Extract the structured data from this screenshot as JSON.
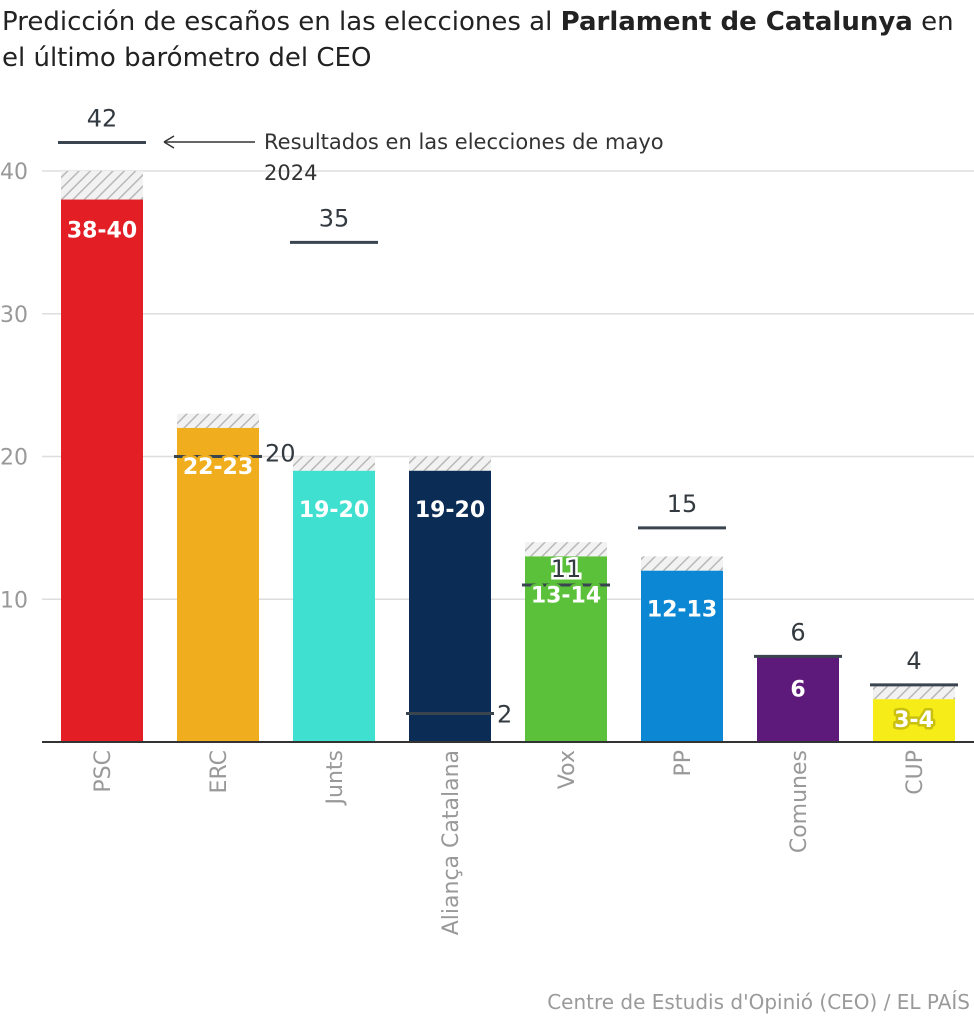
{
  "title": {
    "prefix": "Predicción de escaños en las elecciones al ",
    "bold": "Parlament de Catalunya",
    "suffix": " en el último barómetro del CEO"
  },
  "source": "Centre de Estudis d'Opinió (CEO) / EL PAÍS",
  "chart_data": {
    "type": "bar",
    "ylim": [
      0,
      40
    ],
    "yticks": [
      10,
      20,
      30,
      40
    ],
    "grid": true,
    "annotation": {
      "line1": "Resultados en las elecciones de mayo",
      "line2": "2024"
    },
    "categories": [
      "PSC",
      "ERC",
      "Junts",
      "Aliança Catalana",
      "Vox",
      "PP",
      "Comunes",
      "CUP"
    ],
    "series": [
      {
        "values_min": [
          38,
          22,
          19,
          19,
          13,
          12,
          6,
          3
        ]
      },
      {
        "values_max": [
          40,
          23,
          20,
          20,
          14,
          13,
          6,
          4
        ]
      }
    ],
    "range_labels": [
      "38-40",
      "22-23",
      "19-20",
      "19-20",
      "13-14",
      "12-13",
      "6",
      "3-4"
    ],
    "previous_results": [
      42,
      20,
      35,
      2,
      11,
      15,
      6,
      4
    ],
    "colors": [
      "#e31e25",
      "#f0ae1e",
      "#40e0d0",
      "#0a2c55",
      "#5bc13a",
      "#0b87d3",
      "#5e1a7b",
      "#f5ec18"
    ],
    "label_colors": [
      "#e31e25",
      "#f0ae1e",
      "#40e0d0",
      "#0a2c55",
      "#5bc13a",
      "#0b87d3",
      "#5e1a7b",
      "#c9c010"
    ]
  }
}
